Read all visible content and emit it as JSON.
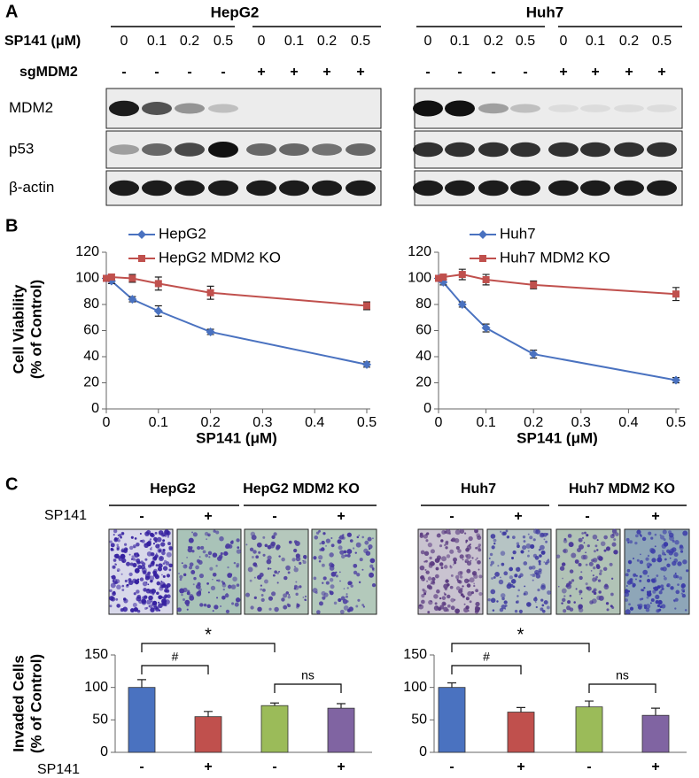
{
  "panel_labels": [
    "A",
    "B",
    "C"
  ],
  "blot": {
    "cell_lines": [
      "HepG2",
      "Huh7"
    ],
    "sp141_label": "SP141 (μM)",
    "sp141_doses": [
      0,
      0.1,
      0.2,
      0.5,
      0,
      0.1,
      0.2,
      0.5
    ],
    "sg_label": "sgMDM2",
    "sg": [
      "-",
      "-",
      "-",
      "-",
      "+",
      "+",
      "+",
      "+"
    ],
    "proteins": [
      "MDM2",
      "p53",
      "β-actin"
    ]
  },
  "invasion": {
    "headers": [
      [
        "HepG2",
        "HepG2 MDM2 KO"
      ],
      [
        "Huh7",
        "Huh7 MDM2 KO"
      ]
    ],
    "sp141_label": "SP141",
    "signs": [
      "-",
      "+",
      "-",
      "+"
    ]
  },
  "chart_data": [
    {
      "type": "line",
      "xlabel": "SP141 (μM)",
      "ylabel": [
        "Cell Viability",
        "(% of Control)"
      ],
      "x": [
        0,
        0.01,
        0.05,
        0.1,
        0.2,
        0.5
      ],
      "xlim": [
        0,
        0.5
      ],
      "xticks": [
        0,
        0.1,
        0.2,
        0.3,
        0.4,
        0.5
      ],
      "ylim": [
        0,
        120
      ],
      "yticks": [
        0,
        20,
        40,
        60,
        80,
        100,
        120
      ],
      "legend": "top",
      "series": [
        {
          "name": "HepG2",
          "color": "#4a72c0",
          "marker": "diamond",
          "values": [
            100,
            98,
            84,
            75,
            59,
            34
          ],
          "errors": [
            2,
            2,
            2,
            4,
            2,
            2
          ]
        },
        {
          "name": "HepG2 MDM2 KO",
          "color": "#c0504d",
          "marker": "square",
          "values": [
            100,
            101,
            100,
            96,
            89,
            79
          ],
          "errors": [
            2,
            2,
            3,
            5,
            5,
            3
          ]
        }
      ]
    },
    {
      "type": "line",
      "xlabel": "SP141 (μM)",
      "x": [
        0,
        0.01,
        0.05,
        0.1,
        0.2,
        0.5
      ],
      "xlim": [
        0,
        0.5
      ],
      "xticks": [
        0,
        0.1,
        0.2,
        0.3,
        0.4,
        0.5
      ],
      "ylim": [
        0,
        120
      ],
      "yticks": [
        0,
        20,
        40,
        60,
        80,
        100,
        120
      ],
      "legend": "top",
      "series": [
        {
          "name": "Huh7",
          "color": "#4a72c0",
          "marker": "diamond",
          "values": [
            100,
            97,
            80,
            62,
            42,
            22
          ],
          "errors": [
            2,
            2,
            2,
            3,
            3,
            2
          ]
        },
        {
          "name": "Huh7 MDM2 KO",
          "color": "#c0504d",
          "marker": "square",
          "values": [
            100,
            101,
            103,
            99,
            95,
            88
          ],
          "errors": [
            2,
            2,
            4,
            4,
            3,
            5
          ]
        }
      ]
    },
    {
      "type": "bar",
      "ylabel": [
        "Invaded Cells",
        "(% of Control)"
      ],
      "xlabel": "SP141",
      "categories": [
        "-",
        "+",
        "-",
        "+"
      ],
      "values": [
        100,
        55,
        72,
        68
      ],
      "errors": [
        12,
        8,
        4,
        7
      ],
      "colors": [
        "#4a72c0",
        "#c0504d",
        "#9bbb59",
        "#8064a2"
      ],
      "ylim": [
        0,
        150
      ],
      "yticks": [
        0,
        50,
        100,
        150
      ],
      "annotations": [
        "*",
        "#",
        "ns"
      ]
    },
    {
      "type": "bar",
      "categories": [
        "-",
        "+",
        "-",
        "+"
      ],
      "values": [
        100,
        62,
        70,
        57
      ],
      "errors": [
        7,
        7,
        9,
        11
      ],
      "colors": [
        "#4a72c0",
        "#c0504d",
        "#9bbb59",
        "#8064a2"
      ],
      "ylim": [
        0,
        150
      ],
      "yticks": [
        0,
        50,
        100,
        150
      ],
      "annotations": [
        "*",
        "#",
        "ns"
      ]
    }
  ]
}
